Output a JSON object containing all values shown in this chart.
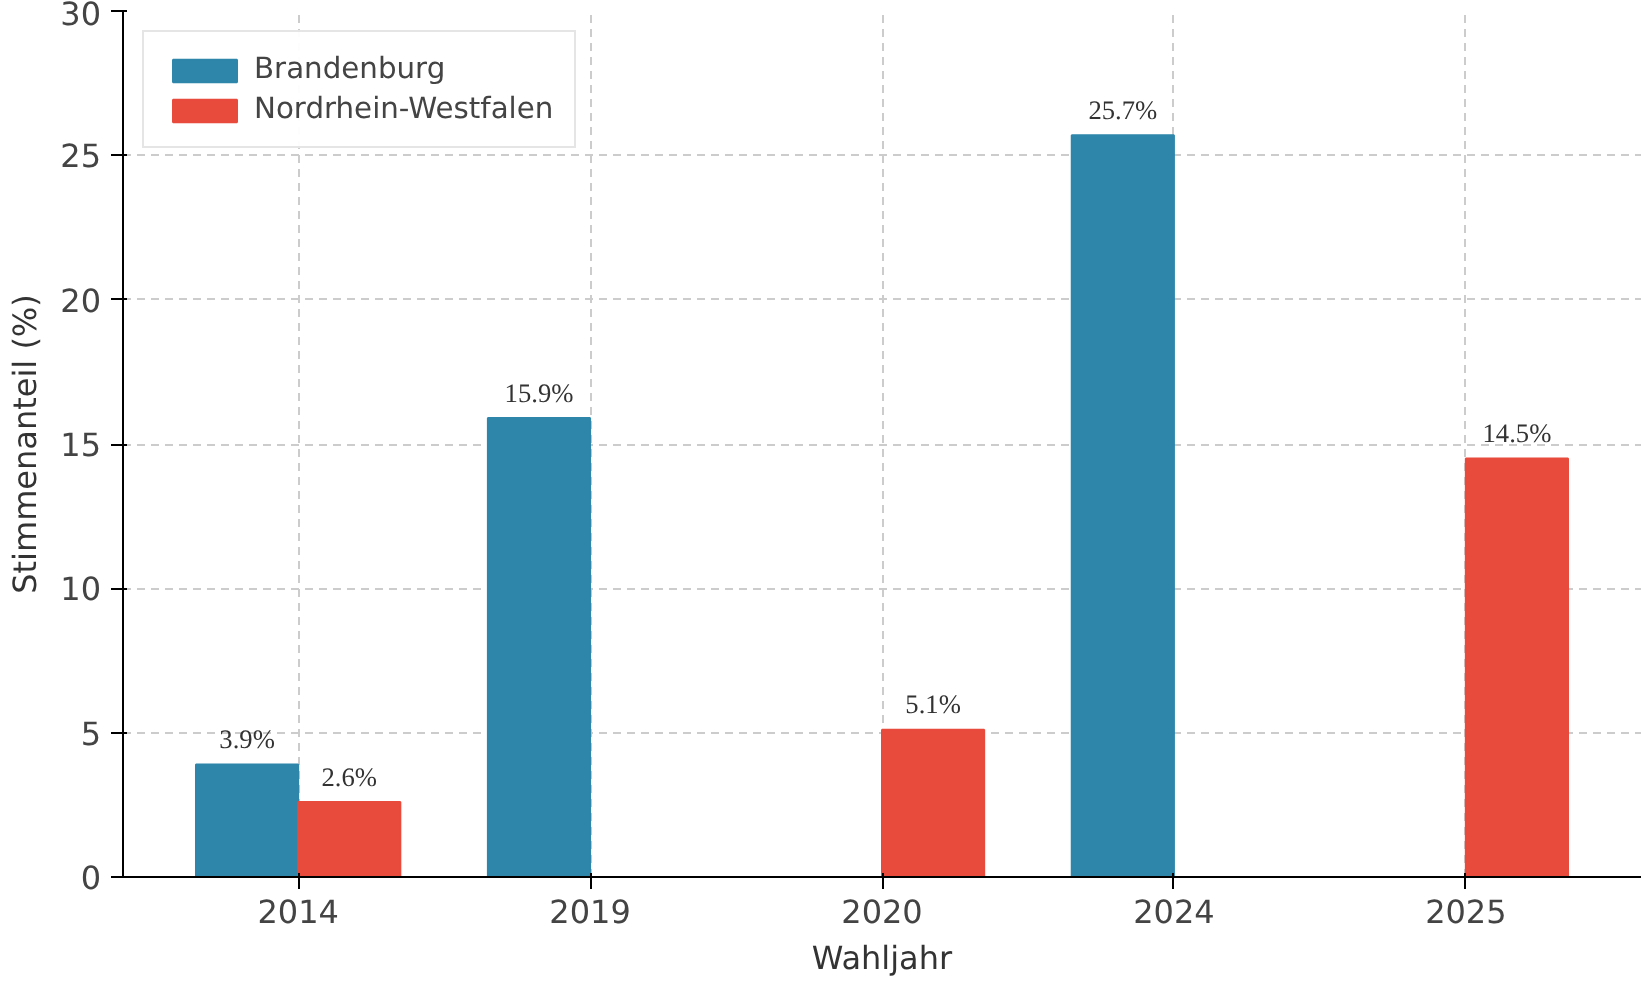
{
  "chart_data": {
    "type": "bar",
    "xlabel": "Wahljahr",
    "ylabel": "Stimmenanteil (%)",
    "categories": [
      "2014",
      "2019",
      "2020",
      "2024",
      "2025"
    ],
    "series": [
      {
        "name": "Brandenburg",
        "color": "#2e86ab",
        "values": [
          3.9,
          15.9,
          null,
          25.7,
          null
        ],
        "value_labels": [
          "3.9%",
          "15.9%",
          null,
          "25.7%",
          null
        ]
      },
      {
        "name": "Nordrhein-Westfalen",
        "color": "#e84a3c",
        "values": [
          2.6,
          null,
          5.1,
          null,
          14.5
        ],
        "value_labels": [
          "2.6%",
          null,
          "5.1%",
          null,
          "14.5%"
        ]
      }
    ],
    "ylim": [
      0,
      30
    ],
    "yticks": [
      0,
      5,
      10,
      15,
      20,
      25,
      30
    ],
    "grid": true,
    "legend": "top left"
  }
}
